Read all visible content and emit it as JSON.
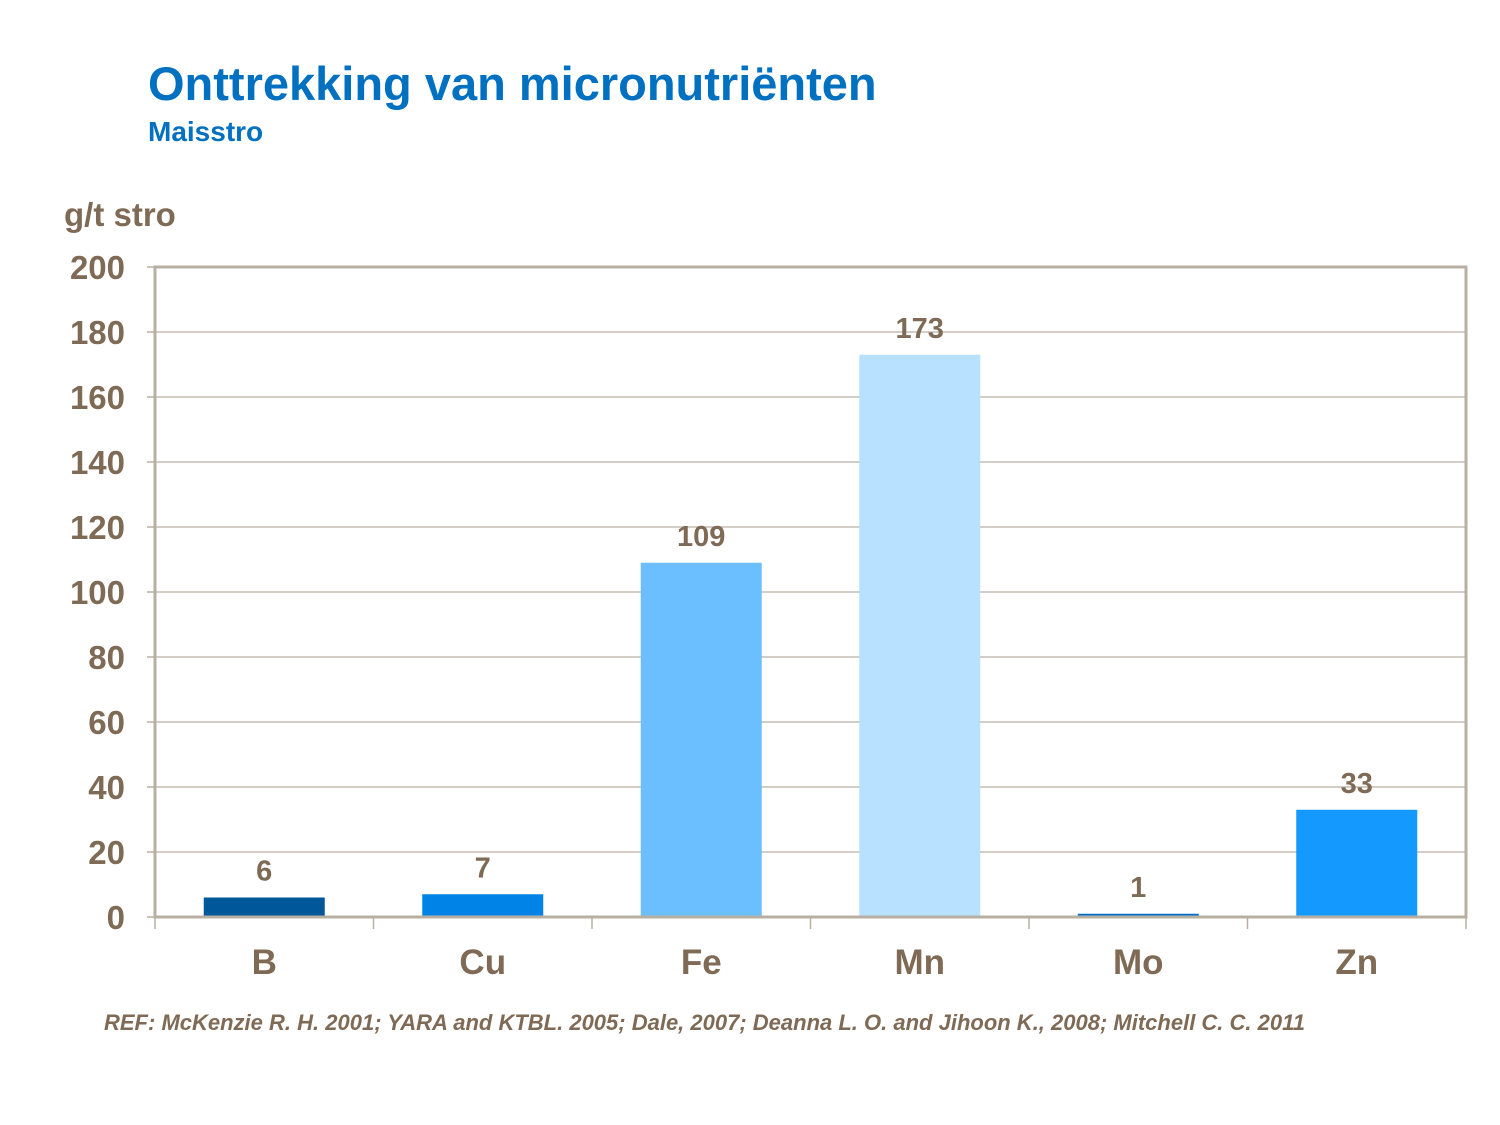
{
  "chart_data": {
    "type": "bar",
    "title": "Onttrekking van micronutriënten",
    "subtitle": "Maisstro",
    "ylabel": "g/t stro",
    "xlabel": "",
    "categories": [
      "B",
      "Cu",
      "Fe",
      "Mn",
      "Mo",
      "Zn"
    ],
    "values": [
      6,
      7,
      109,
      173,
      1,
      33
    ],
    "colors": [
      "#00579A",
      "#0083E6",
      "#6BBFFF",
      "#B8E0FF",
      "#0070C8",
      "#1399FF"
    ],
    "ylim": [
      0,
      200
    ],
    "yticks": [
      0,
      20,
      40,
      60,
      80,
      100,
      120,
      140,
      160,
      180,
      200
    ],
    "grid": true,
    "data_labels": true
  },
  "reference": "REF: McKenzie R. H. 2001; YARA and KTBL. 2005; Dale, 2007; Deanna L. O. and Jihoon K.,  2008; Mitchell C. C. 2011"
}
